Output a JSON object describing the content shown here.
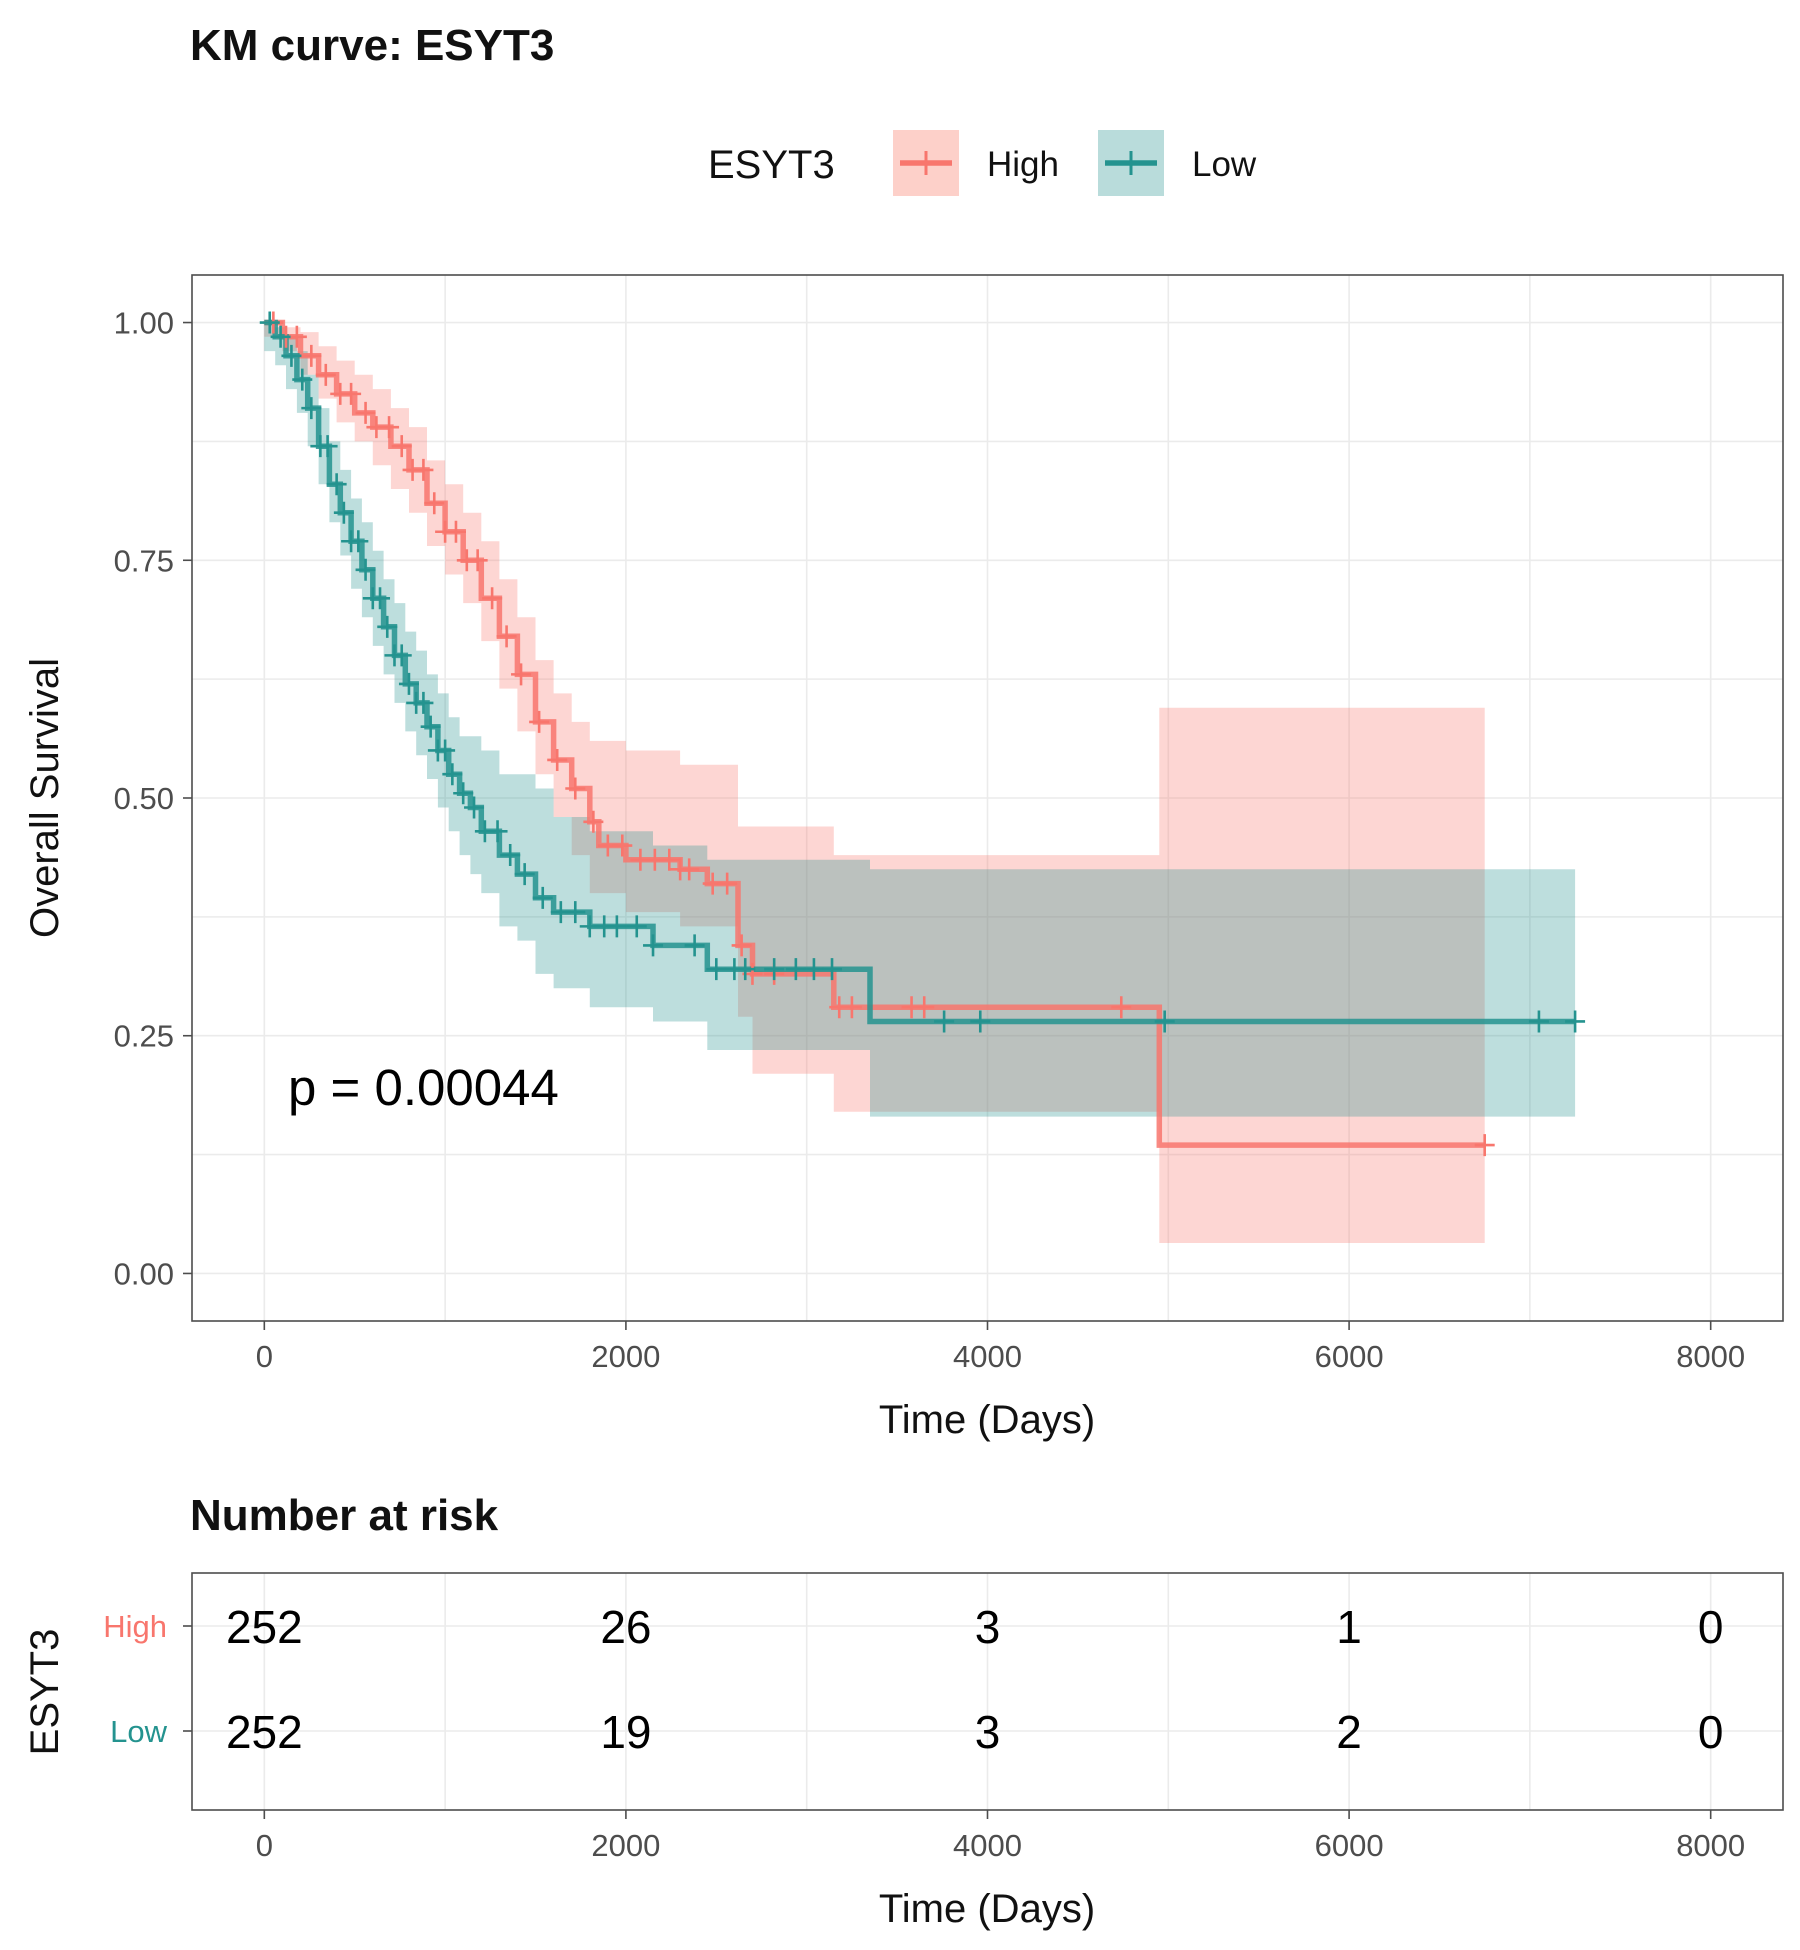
{
  "chart_data": [
    {
      "type": "line",
      "subtype": "kaplan-meier",
      "title": "KM curve: ESYT3",
      "xlabel": "Time (Days)",
      "ylabel": "Overall Survival",
      "xlim": [
        -400,
        8400
      ],
      "ylim": [
        -0.05,
        1.05
      ],
      "x_ticks": [
        0,
        2000,
        4000,
        6000,
        8000
      ],
      "x_tick_labels": [
        "0",
        "2000",
        "4000",
        "6000",
        "8000"
      ],
      "y_ticks": [
        0,
        0.25,
        0.5,
        0.75,
        1.0
      ],
      "y_tick_labels": [
        "0.00",
        "0.25",
        "0.50",
        "0.75",
        "1.00"
      ],
      "grid": true,
      "legend": {
        "title": "ESYT3",
        "position": "top"
      },
      "annotation": "p = 0.00044",
      "series": [
        {
          "name": "High",
          "color": "#F8766D",
          "ci_fill": "#FDD0C9",
          "steps": [
            [
              0,
              1.0
            ],
            [
              100,
              0.985
            ],
            [
              200,
              0.965
            ],
            [
              300,
              0.945
            ],
            [
              400,
              0.925
            ],
            [
              500,
              0.905
            ],
            [
              600,
              0.89
            ],
            [
              700,
              0.87
            ],
            [
              800,
              0.845
            ],
            [
              900,
              0.81
            ],
            [
              1000,
              0.78
            ],
            [
              1100,
              0.75
            ],
            [
              1200,
              0.71
            ],
            [
              1300,
              0.67
            ],
            [
              1400,
              0.63
            ],
            [
              1500,
              0.58
            ],
            [
              1600,
              0.54
            ],
            [
              1700,
              0.51
            ],
            [
              1800,
              0.475
            ],
            [
              1850,
              0.45
            ],
            [
              2000,
              0.435
            ],
            [
              2300,
              0.425
            ],
            [
              2450,
              0.41
            ],
            [
              2620,
              0.345
            ],
            [
              2700,
              0.315
            ],
            [
              3150,
              0.28
            ],
            [
              4950,
              0.135
            ],
            [
              6750,
              0.135
            ]
          ],
          "ci_upper": [
            [
              0,
              1.0
            ],
            [
              100,
              0.995
            ],
            [
              200,
              0.99
            ],
            [
              300,
              0.975
            ],
            [
              400,
              0.96
            ],
            [
              500,
              0.945
            ],
            [
              600,
              0.93
            ],
            [
              700,
              0.91
            ],
            [
              800,
              0.89
            ],
            [
              900,
              0.855
            ],
            [
              1000,
              0.83
            ],
            [
              1100,
              0.8
            ],
            [
              1200,
              0.77
            ],
            [
              1300,
              0.73
            ],
            [
              1400,
              0.69
            ],
            [
              1500,
              0.645
            ],
            [
              1600,
              0.61
            ],
            [
              1700,
              0.58
            ],
            [
              1800,
              0.56
            ],
            [
              2000,
              0.55
            ],
            [
              2300,
              0.535
            ],
            [
              2620,
              0.47
            ],
            [
              3150,
              0.44
            ],
            [
              4950,
              0.595
            ],
            [
              6750,
              0.595
            ]
          ],
          "ci_lower": [
            [
              0,
              0.985
            ],
            [
              100,
              0.97
            ],
            [
              200,
              0.945
            ],
            [
              300,
              0.92
            ],
            [
              400,
              0.895
            ],
            [
              500,
              0.875
            ],
            [
              600,
              0.85
            ],
            [
              700,
              0.825
            ],
            [
              800,
              0.8
            ],
            [
              900,
              0.765
            ],
            [
              1000,
              0.735
            ],
            [
              1100,
              0.705
            ],
            [
              1200,
              0.665
            ],
            [
              1300,
              0.615
            ],
            [
              1400,
              0.57
            ],
            [
              1500,
              0.525
            ],
            [
              1600,
              0.48
            ],
            [
              1700,
              0.44
            ],
            [
              1800,
              0.4
            ],
            [
              2000,
              0.38
            ],
            [
              2300,
              0.365
            ],
            [
              2620,
              0.27
            ],
            [
              2700,
              0.21
            ],
            [
              3150,
              0.17
            ],
            [
              4950,
              0.032
            ],
            [
              6750,
              0.032
            ]
          ],
          "censor_times": [
            50,
            120,
            180,
            260,
            340,
            420,
            480,
            560,
            620,
            690,
            760,
            820,
            880,
            940,
            1000,
            1060,
            1120,
            1180,
            1260,
            1340,
            1420,
            1520,
            1620,
            1720,
            1820,
            1900,
            1980,
            2080,
            2160,
            2240,
            2300,
            2350,
            2480,
            2560,
            2640,
            2700,
            2820,
            3180,
            3250,
            3580,
            3650,
            4740,
            6750
          ]
        },
        {
          "name": "Low",
          "color": "#24938F",
          "ci_fill": "#B9DCDB",
          "steps": [
            [
              0,
              1.0
            ],
            [
              60,
              0.985
            ],
            [
              120,
              0.965
            ],
            [
              180,
              0.94
            ],
            [
              240,
              0.91
            ],
            [
              300,
              0.87
            ],
            [
              360,
              0.83
            ],
            [
              420,
              0.8
            ],
            [
              480,
              0.77
            ],
            [
              540,
              0.74
            ],
            [
              600,
              0.71
            ],
            [
              660,
              0.68
            ],
            [
              720,
              0.65
            ],
            [
              780,
              0.62
            ],
            [
              840,
              0.6
            ],
            [
              900,
              0.575
            ],
            [
              960,
              0.55
            ],
            [
              1020,
              0.525
            ],
            [
              1080,
              0.505
            ],
            [
              1140,
              0.49
            ],
            [
              1200,
              0.465
            ],
            [
              1300,
              0.44
            ],
            [
              1400,
              0.42
            ],
            [
              1500,
              0.395
            ],
            [
              1600,
              0.38
            ],
            [
              1800,
              0.365
            ],
            [
              2150,
              0.345
            ],
            [
              2450,
              0.32
            ],
            [
              3350,
              0.265
            ],
            [
              7250,
              0.265
            ]
          ],
          "ci_upper": [
            [
              0,
              1.0
            ],
            [
              60,
              0.995
            ],
            [
              120,
              0.985
            ],
            [
              180,
              0.97
            ],
            [
              240,
              0.945
            ],
            [
              300,
              0.91
            ],
            [
              360,
              0.875
            ],
            [
              420,
              0.845
            ],
            [
              480,
              0.815
            ],
            [
              540,
              0.79
            ],
            [
              600,
              0.76
            ],
            [
              660,
              0.73
            ],
            [
              720,
              0.705
            ],
            [
              780,
              0.675
            ],
            [
              840,
              0.655
            ],
            [
              900,
              0.63
            ],
            [
              960,
              0.61
            ],
            [
              1020,
              0.585
            ],
            [
              1080,
              0.565
            ],
            [
              1200,
              0.55
            ],
            [
              1300,
              0.525
            ],
            [
              1500,
              0.51
            ],
            [
              1600,
              0.48
            ],
            [
              1800,
              0.465
            ],
            [
              2150,
              0.45
            ],
            [
              2450,
              0.435
            ],
            [
              3350,
              0.425
            ],
            [
              7250,
              0.425
            ]
          ],
          "ci_lower": [
            [
              0,
              0.97
            ],
            [
              60,
              0.955
            ],
            [
              120,
              0.93
            ],
            [
              180,
              0.905
            ],
            [
              240,
              0.87
            ],
            [
              300,
              0.83
            ],
            [
              360,
              0.79
            ],
            [
              420,
              0.755
            ],
            [
              480,
              0.72
            ],
            [
              540,
              0.69
            ],
            [
              600,
              0.66
            ],
            [
              660,
              0.63
            ],
            [
              720,
              0.6
            ],
            [
              780,
              0.57
            ],
            [
              840,
              0.545
            ],
            [
              900,
              0.52
            ],
            [
              960,
              0.49
            ],
            [
              1020,
              0.465
            ],
            [
              1080,
              0.44
            ],
            [
              1140,
              0.42
            ],
            [
              1200,
              0.4
            ],
            [
              1300,
              0.365
            ],
            [
              1400,
              0.35
            ],
            [
              1500,
              0.315
            ],
            [
              1600,
              0.3
            ],
            [
              1800,
              0.28
            ],
            [
              2150,
              0.265
            ],
            [
              2450,
              0.235
            ],
            [
              3350,
              0.165
            ],
            [
              7250,
              0.165
            ]
          ],
          "censor_times": [
            30,
            90,
            150,
            210,
            260,
            310,
            350,
            400,
            440,
            480,
            520,
            560,
            600,
            640,
            680,
            720,
            760,
            800,
            840,
            880,
            920,
            960,
            1000,
            1040,
            1100,
            1160,
            1220,
            1290,
            1360,
            1440,
            1540,
            1640,
            1720,
            1800,
            1880,
            1950,
            2060,
            2150,
            2380,
            2500,
            2600,
            2660,
            2820,
            2940,
            3040,
            3140,
            3760,
            3960,
            4980,
            7050,
            7250
          ]
        }
      ]
    },
    {
      "type": "table",
      "title": "Number at risk",
      "xlabel": "Time (Days)",
      "ylabel": "ESYT3",
      "x_ticks": [
        0,
        2000,
        4000,
        6000,
        8000
      ],
      "x_tick_labels": [
        "0",
        "2000",
        "4000",
        "6000",
        "8000"
      ],
      "groups": [
        "High",
        "Low"
      ],
      "rows": [
        {
          "group": "High",
          "color": "#F8766D",
          "values": [
            252,
            26,
            3,
            1,
            0
          ]
        },
        {
          "group": "Low",
          "color": "#24938F",
          "values": [
            252,
            19,
            3,
            2,
            0
          ]
        }
      ]
    }
  ]
}
